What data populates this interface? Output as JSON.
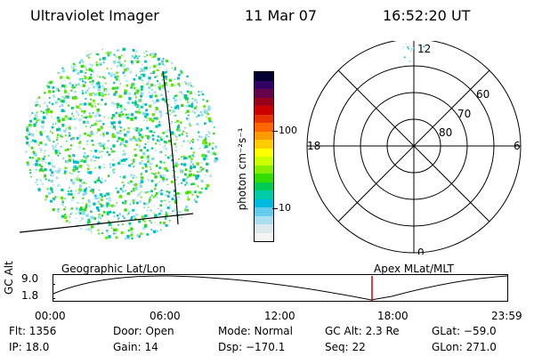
{
  "header": {
    "title": "Ultraviolet Imager",
    "date": "11 Mar 07",
    "time": "16:52:20 UT"
  },
  "colorbar": {
    "unit_label": "photon cm⁻²s⁻¹",
    "ticks": [
      "100",
      "10"
    ],
    "colors": [
      "#000033",
      "#330066",
      "#66004d",
      "#99001a",
      "#cc0000",
      "#e63300",
      "#ff6600",
      "#ff9900",
      "#ffcc00",
      "#ffff00",
      "#ccff00",
      "#88ee00",
      "#33dd00",
      "#00cc55",
      "#00ccaa",
      "#00bbdd",
      "#66ccee",
      "#aaddee",
      "#dde8ee",
      "#f4f4f4"
    ]
  },
  "polar_plot": {
    "mlt_labels": {
      "top": "12",
      "left": "18",
      "right": "6",
      "bottom": "0"
    },
    "lat_labels": [
      "60",
      "70",
      "80"
    ]
  },
  "timeline": {
    "y_axis_label": "GC Alt",
    "y_ticks": [
      "9.0",
      "1.8"
    ],
    "left_title": "Geographic Lat/Lon",
    "right_title": "Apex MLat/MLT",
    "x_ticks": [
      "00:00",
      "06:00",
      "12:00",
      "18:00",
      "23:59"
    ],
    "marker_color": "#cc0000"
  },
  "status": {
    "flt": "Flt: 1356",
    "ip": "IP: 18.0",
    "door": "Door: Open",
    "gain": "Gain: 14",
    "mode": "Mode: Normal",
    "dsp": "Dsp: −170.1",
    "gc_alt": "GC Alt: 2.3 Re",
    "seq": "Seq: 22",
    "glat": "GLat: −59.0",
    "glon": "GLon: 271.0"
  }
}
